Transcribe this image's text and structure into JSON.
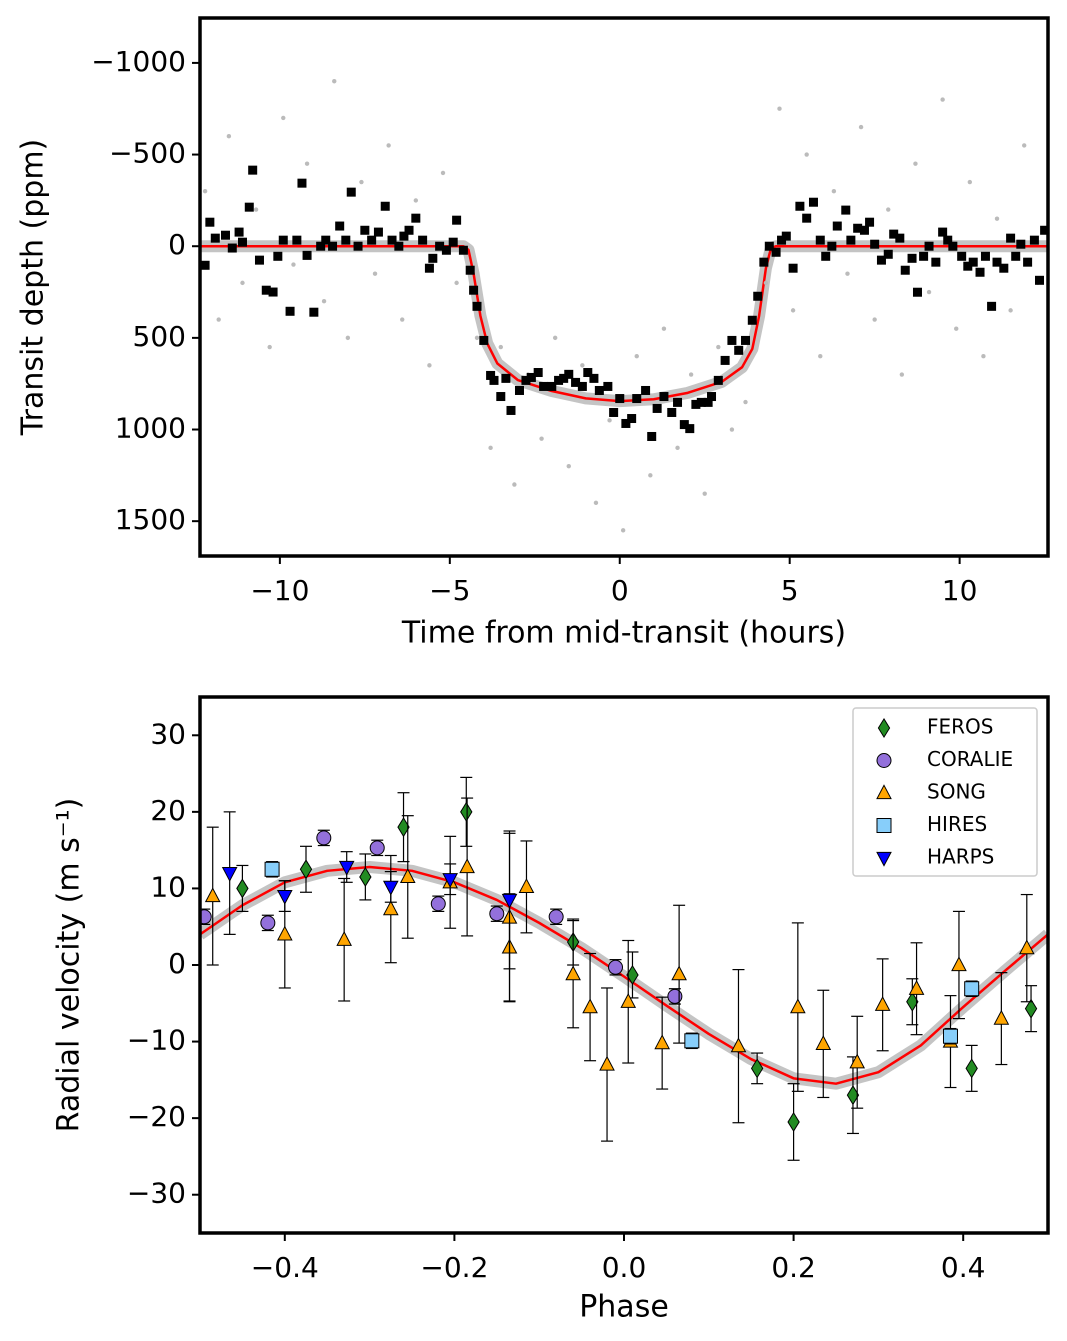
{
  "chart_data": [
    {
      "type": "scatter",
      "xlabel": "Time from mid-transit (hours)",
      "ylabel": "Transit depth (ppm)",
      "xlim": [
        -12.35,
        12.6
      ],
      "ylim": [
        -1245,
        1690
      ],
      "y_inverted": true,
      "xticks": [
        {
          "value": -10,
          "label": "−10"
        },
        {
          "value": -5,
          "label": "−5"
        },
        0,
        5,
        10
      ],
      "yticks": [
        {
          "value": -1000,
          "label": "−1000"
        },
        {
          "value": -500,
          "label": "−500"
        },
        0,
        500,
        1000,
        1500
      ],
      "series": [
        {
          "color": "#bbbbbb",
          "marker": "circle",
          "x": [
            -12.2,
            -11.8,
            -11.5,
            -11.1,
            -10.7,
            -10.3,
            -9.9,
            -9.6,
            -9.2,
            -8.7,
            -8.4,
            -8.0,
            -7.6,
            -7.2,
            -6.8,
            -6.4,
            -6.0,
            -5.6,
            -5.2,
            -4.8,
            -4.2,
            -3.8,
            -3.5,
            -3.1,
            -2.7,
            -2.3,
            -1.9,
            -1.5,
            -1.1,
            -0.7,
            -0.3,
            0.1,
            0.5,
            0.9,
            1.3,
            1.7,
            2.1,
            2.5,
            2.9,
            3.3,
            3.7,
            4.3,
            4.7,
            5.1,
            5.5,
            5.9,
            6.3,
            6.7,
            7.1,
            7.5,
            7.9,
            8.3,
            8.7,
            9.1,
            9.5,
            9.9,
            10.3,
            10.7,
            11.1,
            11.5,
            11.9,
            12.3
          ],
          "values": [
            -300,
            400,
            -600,
            200,
            -200,
            550,
            -700,
            100,
            -450,
            300,
            -900,
            500,
            -350,
            150,
            -550,
            400,
            -250,
            650,
            -400,
            200,
            500,
            1100,
            550,
            1300,
            700,
            1050,
            500,
            1200,
            650,
            1400,
            950,
            1550,
            600,
            1250,
            450,
            1100,
            700,
            1350,
            550,
            1000,
            850,
            200,
            -750,
            350,
            -500,
            600,
            -300,
            150,
            -650,
            400,
            -200,
            700,
            -450,
            250,
            -800,
            450,
            -350,
            600,
            -150,
            350,
            -550,
            200
          ]
        },
        {
          "color": "#000000",
          "marker": "square",
          "x": [
            -12.2,
            -12.06,
            -11.9,
            -11.6,
            -11.4,
            -11.2,
            -11.1,
            -10.9,
            -10.8,
            -10.6,
            -10.4,
            -10.2,
            -10.06,
            -9.9,
            -9.7,
            -9.5,
            -9.35,
            -9.2,
            -9.0,
            -8.8,
            -8.65,
            -8.45,
            -8.24,
            -8.06,
            -7.9,
            -7.7,
            -7.5,
            -7.3,
            -7.1,
            -6.9,
            -6.7,
            -6.5,
            -6.35,
            -6.2,
            -6.0,
            -5.8,
            -5.6,
            -5.5,
            -5.3,
            -5.1,
            -4.9,
            -4.8,
            -4.6,
            -4.4,
            -4.3,
            -4.2,
            -4.0,
            -3.8,
            -3.7,
            -3.5,
            -3.35,
            -3.2,
            -2.95,
            -2.76,
            -2.6,
            -2.4,
            -2.24,
            -2.0,
            -1.8,
            -1.65,
            -1.5,
            -1.3,
            -1.1,
            -0.94,
            -0.76,
            -0.6,
            -0.35,
            -0.18,
            0,
            0.18,
            0.35,
            0.5,
            0.76,
            0.94,
            1.1,
            1.3,
            1.53,
            1.7,
            1.9,
            2.06,
            2.24,
            2.4,
            2.6,
            2.7,
            2.9,
            3.1,
            3.3,
            3.5,
            3.7,
            3.9,
            4.06,
            4.24,
            4.4,
            4.6,
            4.76,
            4.9,
            5.1,
            5.3,
            5.5,
            5.7,
            5.9,
            6.06,
            6.24,
            6.4,
            6.65,
            6.8,
            7.0,
            7.2,
            7.35,
            7.5,
            7.7,
            7.9,
            8.06,
            8.24,
            8.4,
            8.6,
            8.76,
            8.94,
            9.1,
            9.3,
            9.5,
            9.65,
            9.8,
            10.06,
            10.24,
            10.4,
            10.6,
            10.76,
            10.94,
            11.1,
            11.3,
            11.5,
            11.65,
            11.8,
            12.0,
            12.2,
            12.35,
            12.5
          ],
          "values": [
            104,
            -131,
            -44,
            -60,
            10,
            -77,
            -22,
            -213,
            -415,
            76,
            240,
            250,
            55,
            -33,
            355,
            -33,
            -344,
            50,
            360,
            0,
            -33,
            0,
            -110,
            -33,
            -295,
            0,
            -87,
            -33,
            -77,
            -218,
            -33,
            0,
            -55,
            -87,
            -153,
            -33,
            120,
            66,
            0,
            22,
            -22,
            -142,
            22,
            131,
            240,
            328,
            514,
            705,
            732,
            820,
            721,
            896,
            787,
            732,
            716,
            689,
            765,
            765,
            732,
            721,
            699,
            743,
            765,
            689,
            721,
            787,
            765,
            907,
            831,
            967,
            940,
            831,
            787,
            1038,
            885,
            820,
            907,
            852,
            973,
            995,
            863,
            852,
            852,
            820,
            732,
            623,
            514,
            568,
            514,
            404,
            273,
            87,
            0,
            33,
            -33,
            -55,
            120,
            -218,
            -153,
            -240,
            -33,
            55,
            0,
            -110,
            -197,
            -33,
            -98,
            -87,
            -131,
            -11,
            76,
            44,
            -66,
            -44,
            131,
            66,
            251,
            55,
            0,
            87,
            -77,
            -33,
            0,
            55,
            109,
            87,
            142,
            55,
            328,
            87,
            120,
            -44,
            55,
            -11,
            87,
            -33,
            186,
            -87
          ]
        },
        {
          "color": "#ff0000",
          "marker": "line",
          "x": [
            -12.35,
            -4.6,
            -4.45,
            -4.3,
            -4.1,
            -3.9,
            -3.6,
            -3.0,
            -2.0,
            -1.0,
            0,
            1.0,
            2.0,
            3.0,
            3.6,
            3.9,
            4.1,
            4.3,
            4.45,
            4.6,
            12.6
          ],
          "values": [
            0,
            0,
            20,
            150,
            380,
            530,
            640,
            730,
            790,
            830,
            845,
            835,
            800,
            740,
            660,
            560,
            380,
            120,
            10,
            0,
            0
          ]
        }
      ]
    },
    {
      "type": "scatter",
      "xlabel": "Phase",
      "ylabel": "Radial velocity (m s⁻¹)",
      "xlim": [
        -0.5,
        0.5
      ],
      "ylim": [
        -35,
        35
      ],
      "legend": "upper right",
      "xticks": [
        {
          "value": -0.4,
          "label": "−0.4"
        },
        {
          "value": -0.2,
          "label": "−0.2"
        },
        {
          "value": 0,
          "label": "0.0"
        },
        0.2,
        0.4
      ],
      "yticks": [
        {
          "value": -30,
          "label": "−30"
        },
        {
          "value": -20,
          "label": "−20"
        },
        {
          "value": -10,
          "label": "−10"
        },
        0,
        10,
        20,
        30
      ],
      "series": [
        {
          "name": "FEROS",
          "color": "#228b22",
          "marker": "diamond",
          "x": [
            -0.45,
            -0.375,
            -0.305,
            -0.26,
            -0.186,
            -0.06,
            0.01,
            0.157,
            0.2,
            0.27,
            0.34,
            0.41,
            0.48
          ],
          "values": [
            10,
            12.5,
            11.5,
            18,
            20,
            3,
            -1.3,
            -13.5,
            -20.5,
            -17,
            -4.8,
            -13.5,
            -5.7
          ],
          "errors": [
            3,
            3,
            3,
            4.5,
            4.5,
            3,
            3,
            2,
            5,
            5,
            3,
            3,
            3
          ]
        },
        {
          "name": "CORALIE",
          "color": "#9370db",
          "marker": "circle",
          "x": [
            -0.495,
            -0.42,
            -0.354,
            -0.291,
            -0.219,
            -0.15,
            -0.08,
            -0.01,
            0.06
          ],
          "values": [
            6.3,
            5.5,
            16.6,
            15.3,
            8,
            6.7,
            6.3,
            -0.3,
            -4.1
          ],
          "errors": [
            1,
            1,
            1,
            1,
            1,
            1,
            1,
            1,
            1
          ]
        },
        {
          "name": "SONG",
          "color": "#ffa500",
          "marker": "triangle-up",
          "x": [
            -0.485,
            -0.4,
            -0.33,
            -0.275,
            -0.255,
            -0.205,
            -0.185,
            -0.135,
            -0.135,
            -0.115,
            -0.06,
            -0.04,
            -0.02,
            0.005,
            0.045,
            0.065,
            0.135,
            0.205,
            0.235,
            0.275,
            0.305,
            0.345,
            0.385,
            0.395,
            0.445,
            0.475
          ],
          "values": [
            9,
            4,
            3.3,
            7.3,
            11.5,
            10.8,
            12.8,
            2.3,
            6.2,
            10.2,
            -1.2,
            -5.5,
            -13,
            -4.8,
            -10.2,
            -1.2,
            -10.6,
            -5.5,
            -10.3,
            -12.7,
            -5.2,
            -3.1,
            -10,
            0,
            -7,
            2.2
          ],
          "errors": [
            9,
            7,
            8,
            7,
            8,
            6,
            9,
            7,
            11,
            6,
            7,
            7,
            10,
            8,
            6,
            9,
            10,
            11,
            7,
            6,
            6,
            6,
            6,
            7,
            6,
            7
          ]
        },
        {
          "name": "HIRES",
          "color": "#87cefa",
          "marker": "square",
          "x": [
            -0.415,
            0.08,
            0.385,
            0.41
          ],
          "values": [
            12.5,
            -9.9,
            -9.3,
            -3.1
          ],
          "errors": [
            1,
            1,
            1,
            1
          ]
        },
        {
          "name": "HARPS",
          "color": "#0000ff",
          "marker": "triangle-down",
          "x": [
            -0.465,
            -0.4,
            -0.327,
            -0.275,
            -0.205,
            -0.135
          ],
          "values": [
            12,
            9,
            12.8,
            10.2,
            11.2,
            8.5
          ],
          "errors": [
            8,
            2,
            2,
            2,
            2,
            9
          ]
        },
        {
          "color": "#ff0000",
          "marker": "line",
          "x": [
            -0.5,
            -0.45,
            -0.4,
            -0.35,
            -0.3,
            -0.25,
            -0.2,
            -0.15,
            -0.1,
            -0.05,
            0,
            0.05,
            0.1,
            0.15,
            0.2,
            0.25,
            0.3,
            0.35,
            0.4,
            0.45,
            0.5
          ],
          "values": [
            4,
            7.8,
            10.8,
            12.3,
            12.8,
            12.3,
            10.8,
            8.5,
            5.5,
            2.2,
            -1.5,
            -5.3,
            -9,
            -12.3,
            -14.8,
            -15.5,
            -14,
            -10.5,
            -5.5,
            -0.7,
            4
          ]
        }
      ]
    }
  ]
}
